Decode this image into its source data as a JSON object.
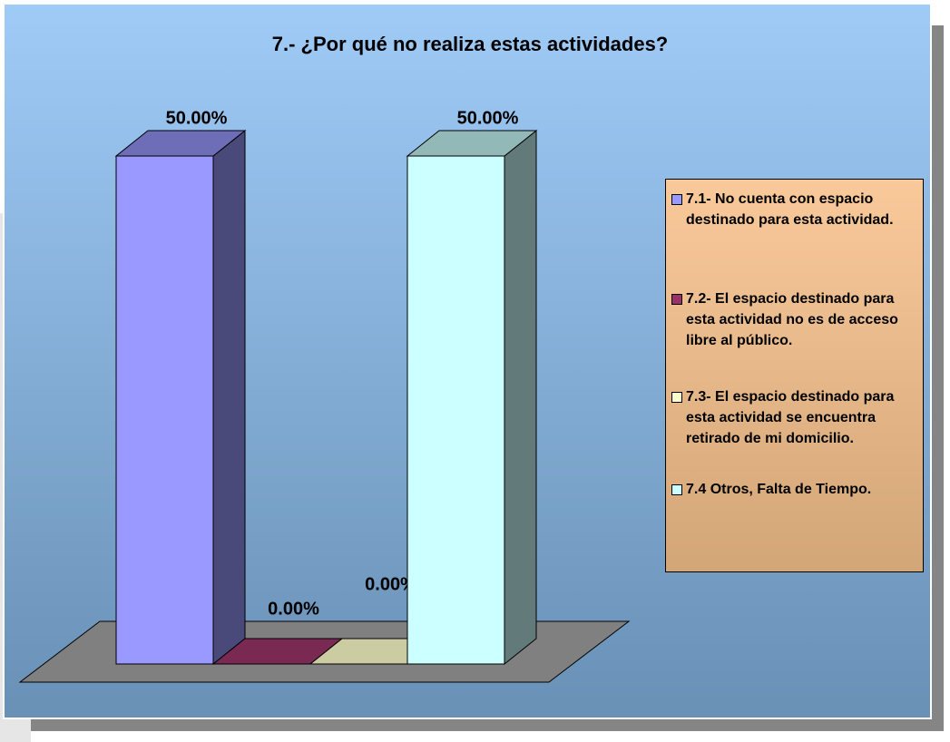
{
  "chart_data": {
    "type": "bar3d",
    "title": "7.- ¿Por qué no realiza estas actividades?",
    "categories": [
      "7.1- No cuenta con espacio destinado para esta actividad.",
      "7.2- El espacio destinado para esta actividad no es de acceso libre al público.",
      "7.3- El espacio destinado para esta actividad se encuentra retirado de mi domicilio.",
      "7.4 Otros, Falta de Tiempo."
    ],
    "values": [
      50,
      0,
      0,
      50
    ],
    "value_labels": [
      "50.00%",
      "0.00%",
      "0.00%",
      "50.00%"
    ],
    "colors": [
      "#9999ff",
      "#993366",
      "#ffffcc",
      "#ccffff"
    ],
    "legend": "right"
  }
}
